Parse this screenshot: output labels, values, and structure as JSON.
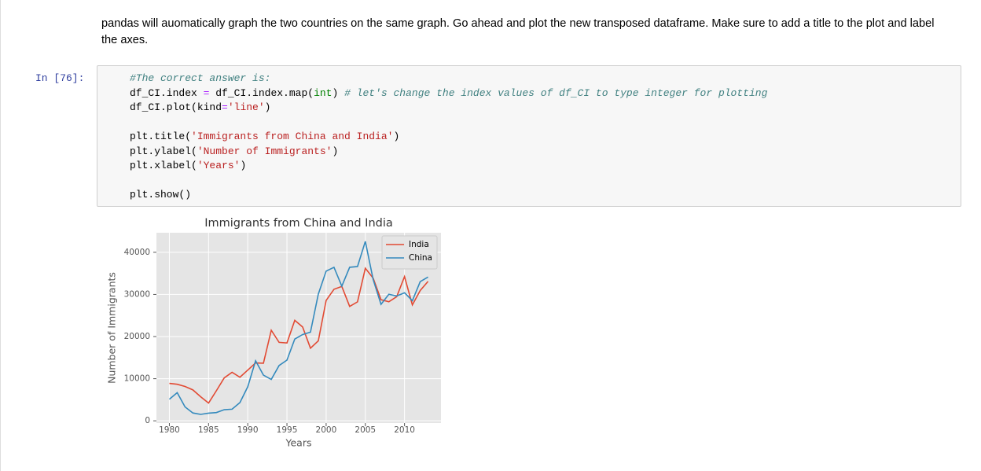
{
  "markdown": {
    "text": "pandas will auomatically graph the two countries on the same graph. Go ahead and plot the new transposed dataframe. Make sure to add a title to the plot and label the axes."
  },
  "cell": {
    "prompt": "In [76]:",
    "code": [
      [
        "#The correct answer is:",
        "df_CI.index = df_CI.index.map(int) # let's change the index values of df_CI to type integer for plotting",
        "df_CI.plot(kind='line')"
      ],
      [
        "plt.title('Immigrants from China and India')",
        "plt.ylabel('Number of Immigrants')",
        "plt.xlabel('Years')"
      ],
      [
        "plt.show()"
      ]
    ]
  },
  "chart_data": {
    "type": "line",
    "title": "Immigrants from China and India",
    "x_label": "Years",
    "y_label": "Number of Immigrants",
    "x": [
      1980,
      1981,
      1982,
      1983,
      1984,
      1985,
      1986,
      1987,
      1988,
      1989,
      1990,
      1991,
      1992,
      1993,
      1994,
      1995,
      1996,
      1997,
      1998,
      1999,
      2000,
      2001,
      2002,
      2003,
      2004,
      2005,
      2006,
      2007,
      2008,
      2009,
      2010,
      2011,
      2012,
      2013
    ],
    "series": [
      {
        "name": "India",
        "color": "#E24A33",
        "values": [
          8880,
          8670,
          8147,
          7338,
          5704,
          4211,
          7150,
          10189,
          11522,
          10343,
          12041,
          13734,
          13673,
          21496,
          18620,
          18489,
          23859,
          22268,
          17241,
          18974,
          28572,
          31223,
          31889,
          27155,
          28235,
          36210,
          33848,
          28742,
          28261,
          29456,
          34235,
          27509,
          30933,
          33087
        ]
      },
      {
        "name": "China",
        "color": "#348ABD",
        "values": [
          5123,
          6682,
          3308,
          1863,
          1527,
          1816,
          1960,
          2643,
          2758,
          4323,
          8076,
          14255,
          10846,
          9817,
          13128,
          14398,
          19415,
          20475,
          21049,
          30069,
          35529,
          36434,
          31961,
          36439,
          36619,
          42584,
          33518,
          27642,
          30037,
          29622,
          30391,
          28502,
          33024,
          34129
        ]
      }
    ],
    "xlim": [
      1978.35,
      2014.65
    ],
    "ylim": [
      -526,
      44637
    ],
    "xticks": [
      1980,
      1985,
      1990,
      1995,
      2000,
      2005,
      2010
    ],
    "yticks": [
      0,
      10000,
      20000,
      30000,
      40000
    ],
    "grid": true,
    "legend": "upper right"
  }
}
